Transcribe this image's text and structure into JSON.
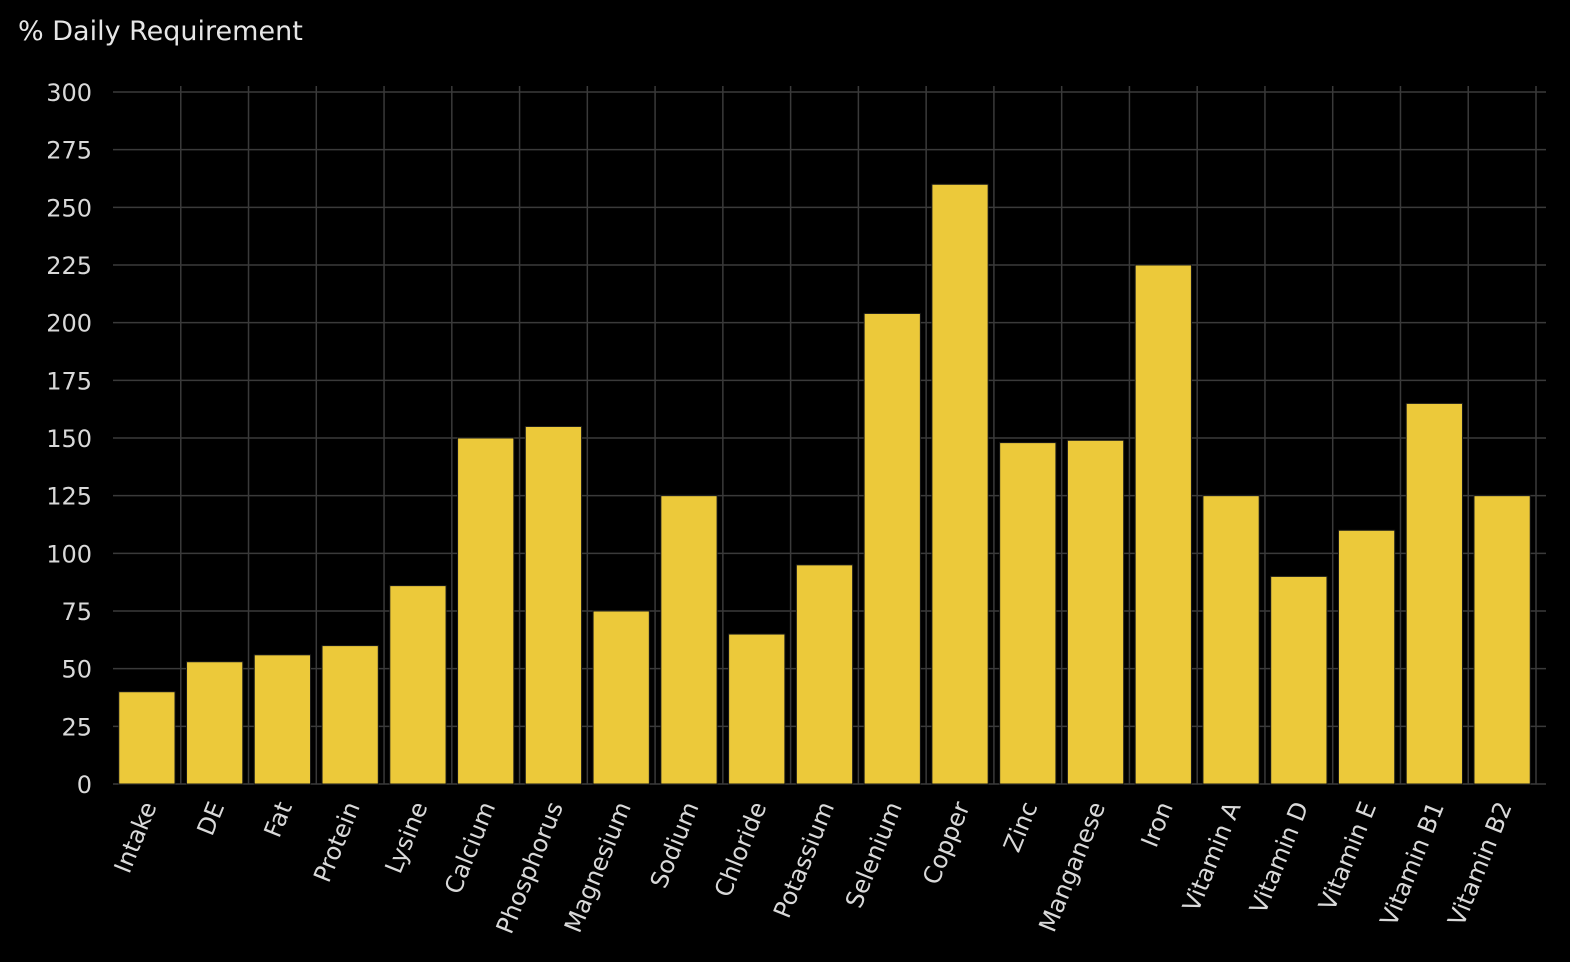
{
  "chart_data": {
    "type": "bar",
    "title": "",
    "xlabel": "",
    "ylabel": "% Daily Requirement",
    "ylim": [
      0,
      300
    ],
    "yticks": [
      0,
      25,
      50,
      75,
      100,
      125,
      150,
      175,
      200,
      225,
      250,
      275,
      300
    ],
    "grid": true,
    "bar_color": "#ecc93a",
    "background": "#000000",
    "categories": [
      "Intake",
      "DE",
      "Fat",
      "Protein",
      "Lysine",
      "Calcium",
      "Phosphorus",
      "Magnesium",
      "Sodium",
      "Chloride",
      "Potassium",
      "Selenium",
      "Copper",
      "Zinc",
      "Manganese",
      "Iron",
      "Vitamin A",
      "Vitamin D",
      "Vitamin E",
      "Vitamin B1",
      "Vitamin B2"
    ],
    "values": [
      40,
      53,
      56,
      60,
      86,
      150,
      155,
      75,
      125,
      65,
      95,
      204,
      260,
      148,
      149,
      225,
      125,
      90,
      110,
      165,
      125
    ]
  }
}
